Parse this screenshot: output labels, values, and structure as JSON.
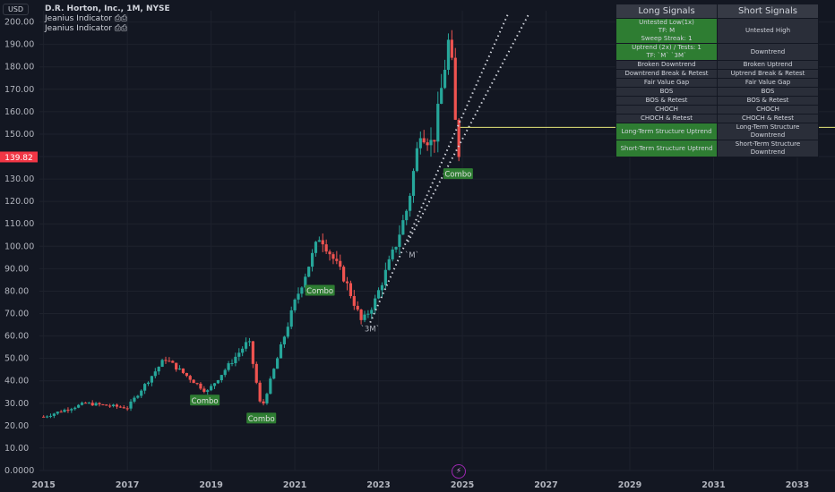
{
  "header": {
    "currency_button": "USD",
    "symbol_line": "D.R. Horton, Inc., 1M, NYSE",
    "indicator_1": "Jeanius Indicator ⎙⎙",
    "indicator_2": "Jeanius Indicator ⎙⎙"
  },
  "price_scale": {
    "last_price_label": "139.82",
    "last_price_color": "#f23645",
    "tick_labels": [
      "200.00",
      "190.00",
      "180.00",
      "170.00",
      "160.00",
      "150.00",
      "140.00",
      "130.00",
      "120.00",
      "110.00",
      "100.00",
      "90.00",
      "80.00",
      "70.00",
      "60.00",
      "50.00",
      "40.00",
      "30.00",
      "20.00",
      "10.00",
      "0.0000"
    ]
  },
  "time_scale": {
    "tick_labels": [
      "2015",
      "2017",
      "2019",
      "2021",
      "2023",
      "2025",
      "2027",
      "2029",
      "2031",
      "2033"
    ]
  },
  "signals_table": {
    "headers": [
      "Long Signals",
      "Short Signals"
    ],
    "rows": [
      {
        "long": "Untested Low(1x)\nTF: M\nSweep Streak: 1",
        "short": "Untested High",
        "long_green": true
      },
      {
        "long": "Uptrend (2x) / Tests: 1\nTF: `M` `3M`",
        "short": "Downtrend",
        "long_green": true
      },
      {
        "long": "Broken Downtrend",
        "short": "Broken Uptrend",
        "long_green": false
      },
      {
        "long": "Downtrend Break & Retest",
        "short": "Uptrend Break & Retest",
        "long_green": false
      },
      {
        "long": "Fair Value Gap",
        "short": "Fair Value Gap",
        "long_green": false
      },
      {
        "long": "BOS",
        "short": "BOS",
        "long_green": false
      },
      {
        "long": "BOS & Retest",
        "short": "BOS & Retest",
        "long_green": false
      },
      {
        "long": "CHOCH",
        "short": "CHOCH",
        "long_green": false
      },
      {
        "long": "CHOCH & Retest",
        "short": "CHOCH & Retest",
        "long_green": false
      },
      {
        "long": "Long-Term Structure Uptrend",
        "short": "Long-Term Structure Downtrend",
        "long_green": true
      },
      {
        "long": "Short-Term Structure Uptrend",
        "short": "Short-Term Structure Downtrend",
        "long_green": true
      }
    ]
  },
  "colors": {
    "up": "#26a69a",
    "down": "#ef5350",
    "background": "#131722",
    "grid": "#1e222d",
    "label_bg": "#2e7d32",
    "level_line": "#e6e67a"
  },
  "chart_data": {
    "type": "candlestick",
    "title": "D.R. Horton, Inc., 1M, NYSE",
    "ylim": [
      0,
      205
    ],
    "xlim": [
      2014.9,
      2033.9
    ],
    "interval": "1M",
    "key_points": [
      {
        "x": 2015.0,
        "y": 24
      },
      {
        "x": 2016.0,
        "y": 30
      },
      {
        "x": 2017.0,
        "y": 28
      },
      {
        "x": 2017.9,
        "y": 50
      },
      {
        "x": 2018.9,
        "y": 35
      },
      {
        "x": 2019.9,
        "y": 58
      },
      {
        "x": 2020.2,
        "y": 27
      },
      {
        "x": 2021.0,
        "y": 75
      },
      {
        "x": 2021.6,
        "y": 105
      },
      {
        "x": 2022.2,
        "y": 85
      },
      {
        "x": 2022.6,
        "y": 66
      },
      {
        "x": 2022.9,
        "y": 75
      },
      {
        "x": 2023.4,
        "y": 100
      },
      {
        "x": 2023.7,
        "y": 118
      },
      {
        "x": 2024.0,
        "y": 152
      },
      {
        "x": 2024.3,
        "y": 145
      },
      {
        "x": 2024.7,
        "y": 195
      },
      {
        "x": 2024.85,
        "y": 150
      },
      {
        "x": 2024.95,
        "y": 139.82
      }
    ],
    "annotations": [
      {
        "text": "Combo",
        "x": 2018.85,
        "y": 31
      },
      {
        "text": "Combo",
        "x": 2020.2,
        "y": 23
      },
      {
        "text": "Combo",
        "x": 2021.6,
        "y": 80
      },
      {
        "text": "Combo",
        "x": 2024.9,
        "y": 132
      },
      {
        "text": "`3M`",
        "x": 2022.8,
        "y": 62
      },
      {
        "text": "`M`",
        "x": 2023.8,
        "y": 95
      }
    ],
    "trendlines": [
      {
        "from": [
          2022.8,
          66
        ],
        "to": [
          2026.1,
          204
        ],
        "style": "dotted"
      },
      {
        "from": [
          2023.7,
          102
        ],
        "to": [
          2026.6,
          204
        ],
        "style": "dotted"
      }
    ],
    "horizontal_level": 153
  }
}
